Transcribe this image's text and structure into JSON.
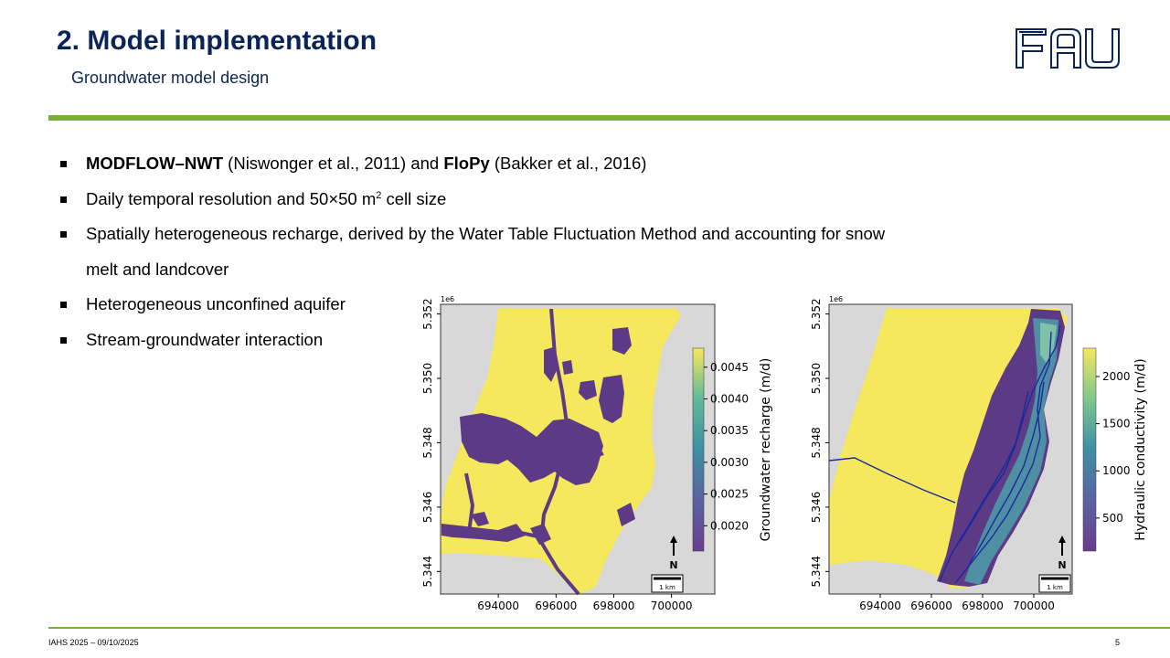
{
  "header": {
    "title": "2. Model implementation",
    "subtitle": "Groundwater model design",
    "logo_text": "FAU"
  },
  "bullets": [
    {
      "bold1": "MODFLOW–NWT",
      "text1": " (Niswonger et al., 2011) and ",
      "bold2": "FloPy",
      "text2": " (Bakker et al., 2016)"
    },
    {
      "text": "Daily temporal resolution and 50×50 m",
      "sup": "2",
      "after": " cell size"
    },
    {
      "text": "Spatially heterogeneous recharge, derived by the Water Table Fluctuation Method and accounting for snow"
    },
    {
      "text": "melt and landcover"
    },
    {
      "text": "Heterogeneous unconfined aquifer"
    },
    {
      "text": "Stream-groundwater interaction"
    }
  ],
  "map_common": {
    "y_offset": "1e6",
    "y_ticks": [
      "5.344",
      "5.346",
      "5.348",
      "5.350",
      "5.352"
    ],
    "x_ticks": [
      "694000",
      "696000",
      "698000",
      "700000"
    ],
    "north_label": "N",
    "scale_label": "1 km"
  },
  "chart_data": [
    {
      "type": "heatmap",
      "title": "",
      "colorbar_label": "Groundwater recharge (m/d)",
      "colorbar_ticks": [
        "0.0045",
        "0.0040",
        "0.0035",
        "0.0030",
        "0.0025",
        "0.0020"
      ],
      "colorbar_range": [
        0.0016,
        0.0048
      ],
      "colormap": "viridis",
      "x_range": [
        692000,
        701500
      ],
      "y_range": [
        5343300,
        5352300
      ]
    },
    {
      "type": "heatmap",
      "title": "",
      "colorbar_label": "Hydraulic conductivity (m/d)",
      "colorbar_ticks": [
        "2000",
        "1500",
        "1000",
        "500"
      ],
      "colorbar_range": [
        150,
        2300
      ],
      "colormap": "viridis",
      "x_range": [
        692000,
        701500
      ],
      "y_range": [
        5343300,
        5352300
      ]
    }
  ],
  "footer": {
    "left": "IAHS 2025 – 09/10/2025",
    "page": "5"
  },
  "colors": {
    "title": "#0b2456",
    "accent_green": "#7ab030",
    "map_yellow": "#f6e85c",
    "map_purple": "#5c3a86",
    "map_grey": "#d8d8d8"
  }
}
